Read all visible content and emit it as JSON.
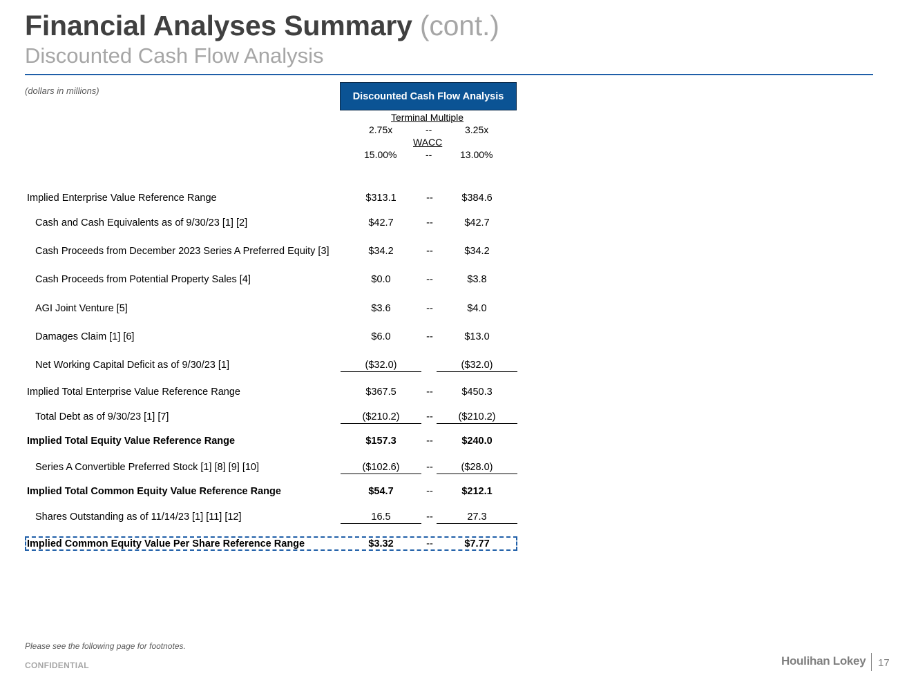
{
  "header": {
    "title": "Financial Analyses Summary",
    "title_cont": "(cont.)",
    "subtitle": "Discounted Cash Flow Analysis",
    "units_note": "(dollars in millions)"
  },
  "dcf": {
    "box_label": "Discounted Cash Flow Analysis",
    "terminal_multiple_label": "Terminal Multiple",
    "multiple_low": "2.75x",
    "multiple_high": "3.25x",
    "wacc_label": "WACC",
    "wacc_low": "15.00%",
    "wacc_high": "13.00%",
    "separator": "--"
  },
  "rows": [
    {
      "label": "Implied Enterprise Value Reference Range",
      "low": "$313.1",
      "high": "$384.6",
      "dash": "--"
    },
    {
      "label": "Cash and Cash Equivalents as of 9/30/23 [1] [2]",
      "low": "$42.7",
      "high": "$42.7",
      "dash": "--"
    },
    {
      "label": "Cash Proceeds from December 2023 Series A Preferred Equity [3]",
      "low": "$34.2",
      "high": "$34.2",
      "dash": "--"
    },
    {
      "label": "Cash Proceeds from Potential Property Sales [4]",
      "low": "$0.0",
      "high": "$3.8",
      "dash": "--"
    },
    {
      "label": "AGI Joint Venture [5]",
      "low": "$3.6",
      "high": "$4.0",
      "dash": "--"
    },
    {
      "label": "Damages Claim [1] [6]",
      "low": "$6.0",
      "high": "$13.0",
      "dash": "--"
    },
    {
      "label": "Net Working Capital Deficit as of 9/30/23 [1]",
      "low": "($32.0)",
      "high": "($32.0)",
      "dash": ""
    },
    {
      "label": "Implied Total Enterprise Value Reference Range",
      "low": "$367.5",
      "high": "$450.3",
      "dash": "--"
    },
    {
      "label": "Total Debt as of 9/30/23 [1] [7]",
      "low": "($210.2)",
      "high": "($210.2)",
      "dash": "--"
    },
    {
      "label": "Implied Total Equity Value Reference Range",
      "low": "$157.3",
      "high": "$240.0",
      "dash": "--"
    },
    {
      "label": "Series A Convertible Preferred Stock [1] [8] [9] [10]",
      "low": "($102.6)",
      "high": "($28.0)",
      "dash": "--"
    },
    {
      "label": "Implied Total Common Equity Value Reference Range",
      "low": "$54.7",
      "high": "$212.1",
      "dash": "--"
    },
    {
      "label": "Shares Outstanding as of 11/14/23 [1] [11] [12]",
      "low": "16.5",
      "high": "27.3",
      "dash": "--"
    },
    {
      "label": "Implied Common Equity Value Per Share Reference Range",
      "low": "$3.32",
      "high": "$7.77",
      "dash": "--"
    }
  ],
  "footer": {
    "note": "Please see the following page for footnotes.",
    "confidential": "CONFIDENTIAL",
    "brand": "Houlihan Lokey",
    "page_number": "17"
  }
}
